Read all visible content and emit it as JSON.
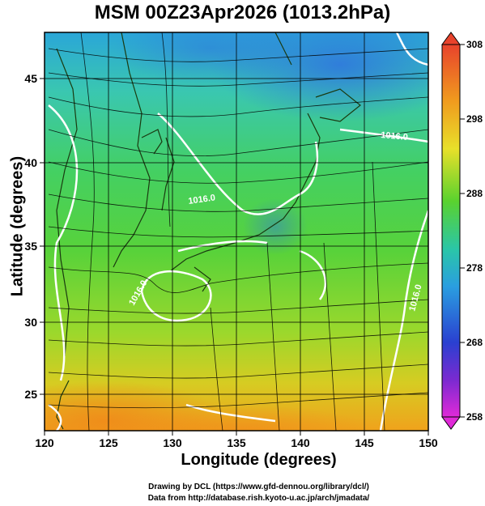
{
  "title": "MSM 00Z23Apr2026 (1013.2hPa)",
  "axes": {
    "xlabel": "Longitude (degrees)",
    "ylabel": "Latitude  (degrees)",
    "xticks": [
      "120",
      "125",
      "130",
      "135",
      "140",
      "145",
      "150"
    ],
    "yticks": [
      "45",
      "40",
      "35",
      "30",
      "25"
    ]
  },
  "colorbar": {
    "ticks": [
      "308",
      "298",
      "288",
      "278",
      "268",
      "258"
    ]
  },
  "contour_labels": [
    "1016.0",
    "1016.0",
    "1016.0",
    "1016.0"
  ],
  "credits": {
    "line1": "Drawing by DCL (https://www.gfd-dennou.org/library/dcl/)",
    "line2": "Data from http://database.rish.kyoto-u.ac.jp/arch/jmadata/"
  },
  "colors": {
    "cold": "#3a7de0",
    "cool": "#27c3a0",
    "mid": "#5ad12a",
    "warm": "#f2a51a",
    "hot": "#e23a2a",
    "contour": "#ffffff"
  }
}
